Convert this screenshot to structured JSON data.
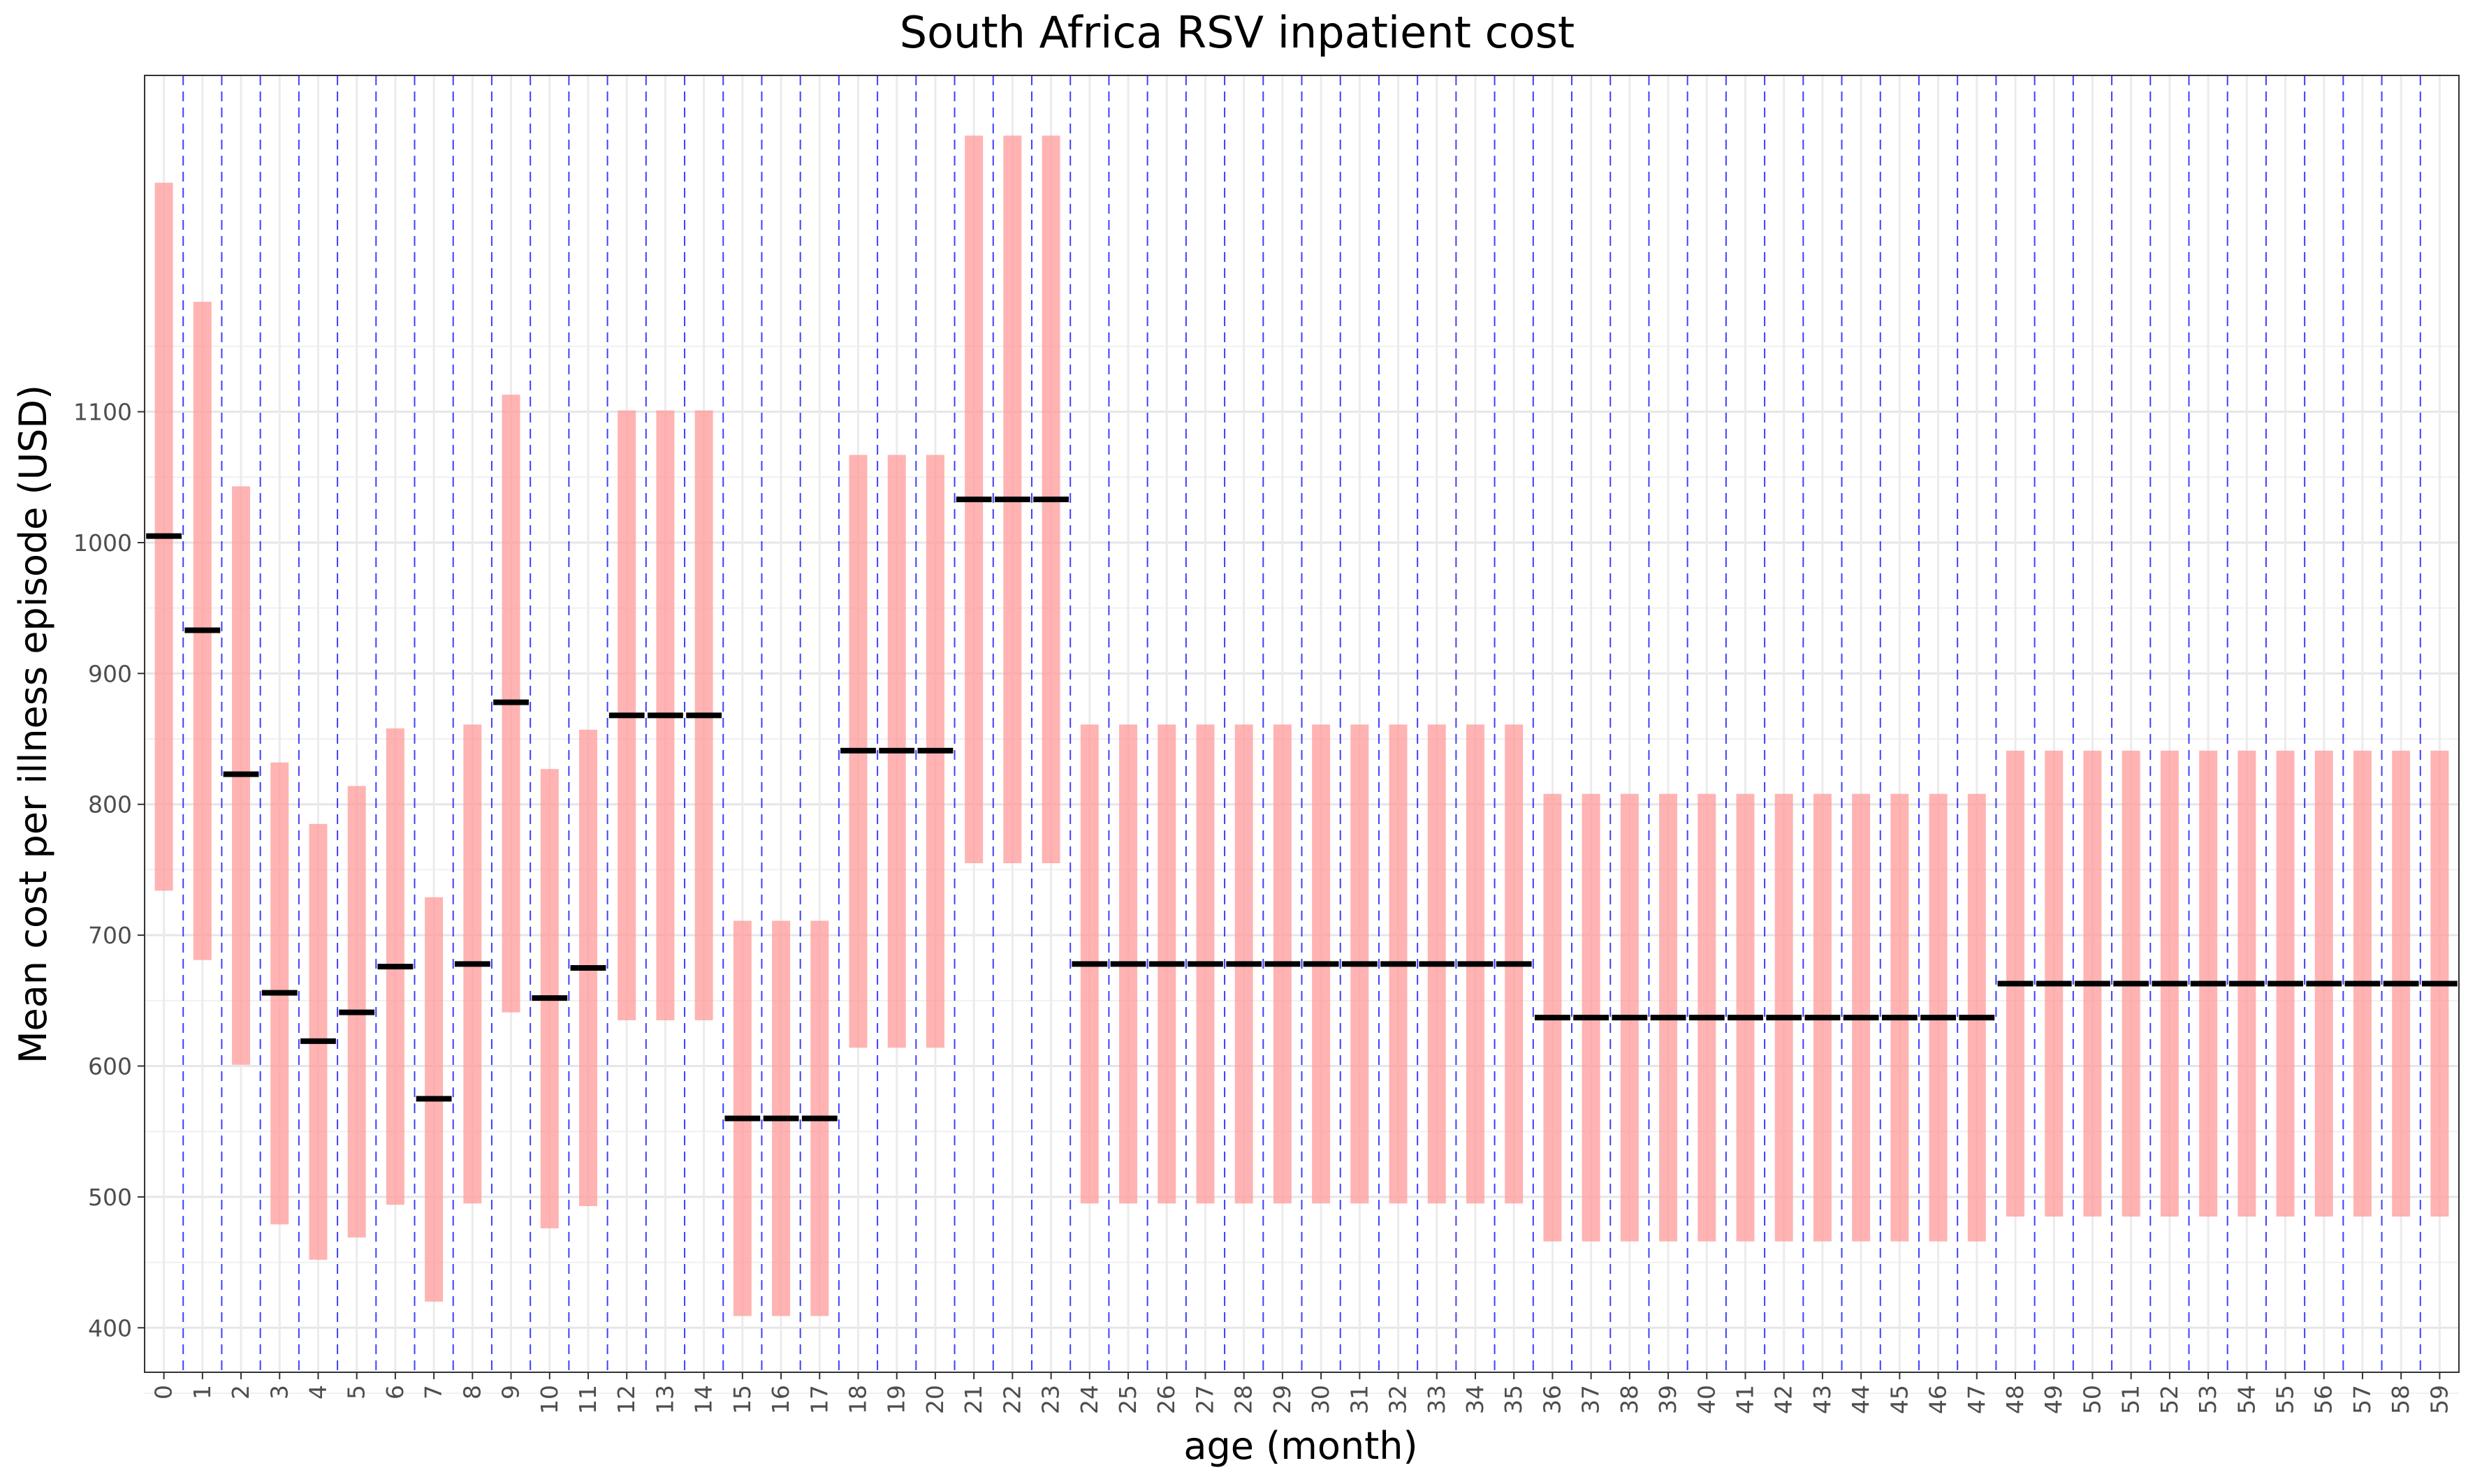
{
  "chart_data": {
    "type": "bar",
    "subtype": "range (floating bar) with mean marker",
    "title": "South Africa RSV inpatient cost",
    "xlabel": "age (month)",
    "ylabel": "Mean cost per illness episode (USD)",
    "x": [
      0,
      1,
      2,
      3,
      4,
      5,
      6,
      7,
      8,
      9,
      10,
      11,
      12,
      13,
      14,
      15,
      16,
      17,
      18,
      19,
      20,
      21,
      22,
      23,
      24,
      25,
      26,
      27,
      28,
      29,
      30,
      31,
      32,
      33,
      34,
      35,
      36,
      37,
      38,
      39,
      40,
      41,
      42,
      43,
      44,
      45,
      46,
      47,
      48,
      49,
      50,
      51,
      52,
      53,
      54,
      55,
      56,
      57,
      58,
      59
    ],
    "x_tick_labels": [
      "0",
      "1",
      "2",
      "3",
      "4",
      "5",
      "6",
      "7",
      "8",
      "9",
      "10",
      "11",
      "12",
      "13",
      "14",
      "15",
      "16",
      "17",
      "18",
      "19",
      "20",
      "21",
      "22",
      "23",
      "24",
      "25",
      "26",
      "27",
      "28",
      "29",
      "30",
      "31",
      "32",
      "33",
      "34",
      "35",
      "36",
      "37",
      "38",
      "39",
      "40",
      "41",
      "42",
      "43",
      "44",
      "45",
      "46",
      "47",
      "48",
      "49",
      "50",
      "51",
      "52",
      "53",
      "54",
      "55",
      "56",
      "57",
      "58",
      "59"
    ],
    "y_ticks": [
      400,
      500,
      600,
      700,
      800,
      900,
      1000,
      1100
    ],
    "y_tick_labels": [
      "400",
      "500",
      "600",
      "700",
      "800",
      "900",
      "1000",
      "1100"
    ],
    "ylim": [
      366,
      1357
    ],
    "xlim": [
      -0.5,
      59.5
    ],
    "series": [
      {
        "role": "range",
        "color": "#ff9999",
        "low": [
          734,
          681,
          601,
          479,
          452,
          469,
          494,
          420,
          495,
          641,
          476,
          493,
          635,
          635,
          635,
          409,
          409,
          409,
          614,
          614,
          614,
          755,
          755,
          755,
          495,
          495,
          495,
          495,
          495,
          495,
          495,
          495,
          495,
          495,
          495,
          495,
          466,
          466,
          466,
          466,
          466,
          466,
          466,
          466,
          466,
          466,
          466,
          466,
          485,
          485,
          485,
          485,
          485,
          485,
          485,
          485,
          485,
          485,
          485,
          485
        ],
        "high": [
          1275,
          1184,
          1043,
          832,
          785,
          814,
          858,
          729,
          861,
          1113,
          827,
          857,
          1101,
          1101,
          1101,
          711,
          711,
          711,
          1067,
          1067,
          1067,
          1311,
          1311,
          1311,
          861,
          861,
          861,
          861,
          861,
          861,
          861,
          861,
          861,
          861,
          861,
          861,
          808,
          808,
          808,
          808,
          808,
          808,
          808,
          808,
          808,
          808,
          808,
          808,
          841,
          841,
          841,
          841,
          841,
          841,
          841,
          841,
          841,
          841,
          841,
          841
        ]
      },
      {
        "role": "mean",
        "color": "#000000",
        "values": [
          1005,
          933,
          823,
          656,
          619,
          641,
          676,
          575,
          678,
          878,
          652,
          675,
          868,
          868,
          868,
          560,
          560,
          560,
          841,
          841,
          841,
          1033,
          1033,
          1033,
          678,
          678,
          678,
          678,
          678,
          678,
          678,
          678,
          678,
          678,
          678,
          678,
          637,
          637,
          637,
          637,
          637,
          637,
          637,
          637,
          637,
          637,
          637,
          637,
          663,
          663,
          663,
          663,
          663,
          663,
          663,
          663,
          663,
          663,
          663,
          663
        ]
      }
    ],
    "separator_line_color": "#0000ff",
    "grid": true,
    "legend": "none"
  }
}
